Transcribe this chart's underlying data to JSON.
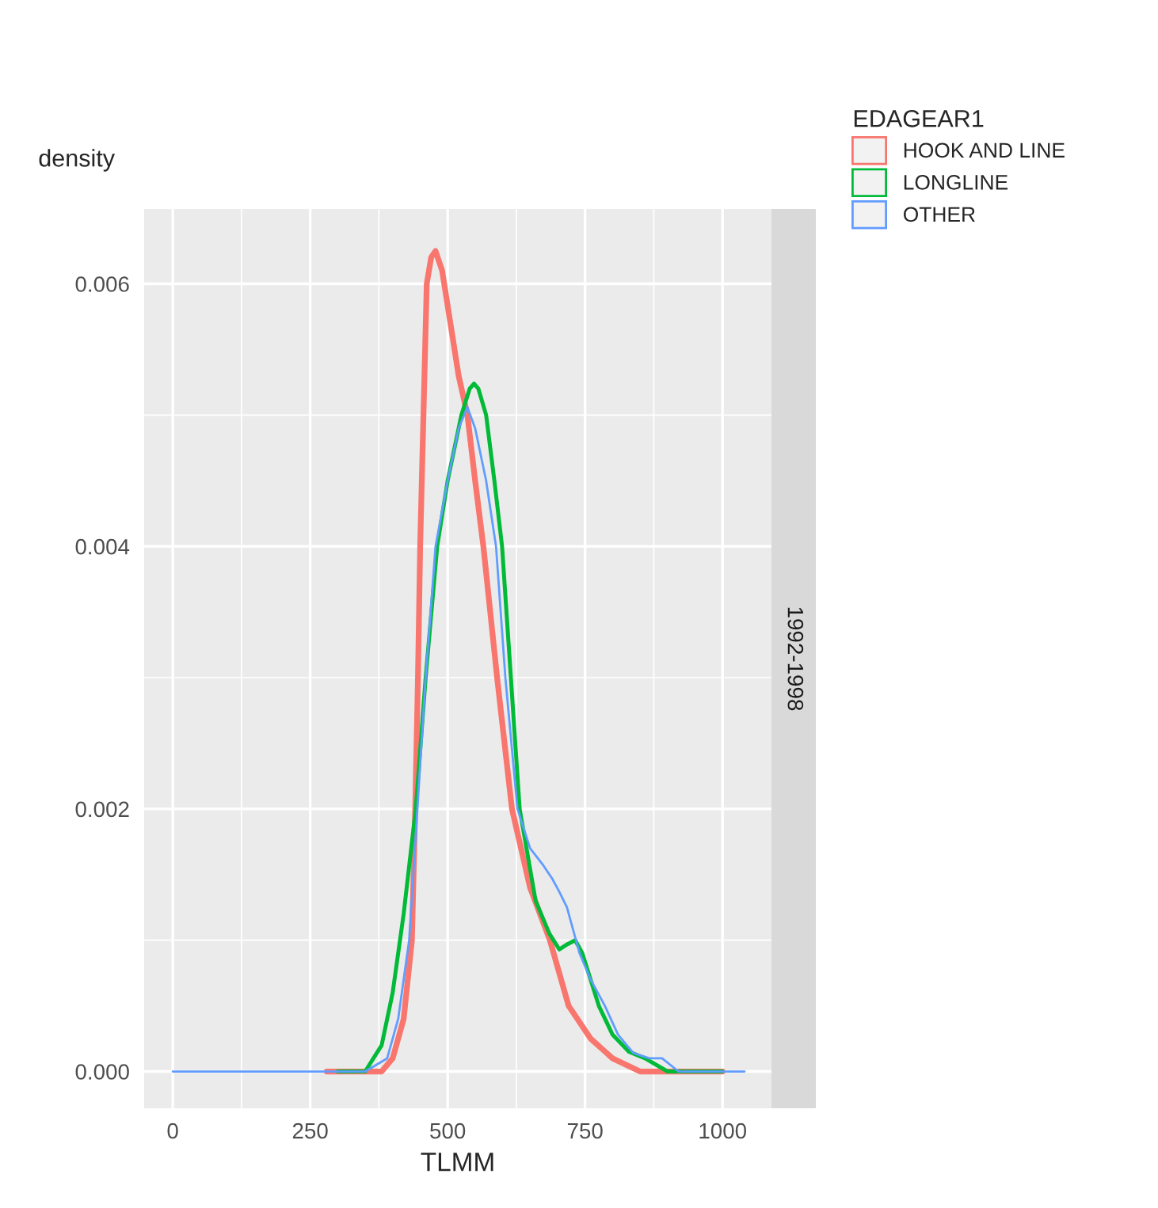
{
  "chart_data": {
    "type": "line",
    "xlabel": "TLMM",
    "ylabel": "density",
    "legend_title": "EDAGEAR1",
    "legend": "top right",
    "grid": true,
    "annotations": [
      "1992-1998"
    ],
    "xlim": [
      -52,
      1089
    ],
    "ylim": [
      -0.00028,
      0.00657
    ],
    "xticks": [
      0,
      250,
      500,
      750,
      1000
    ],
    "yticks": [
      {
        "value": 0,
        "label": "0.000"
      },
      {
        "value": 0.002,
        "label": "0.002"
      },
      {
        "value": 0.004,
        "label": "0.004"
      },
      {
        "value": 0.006,
        "label": "0.006"
      }
    ],
    "series": [
      {
        "name": "HOOK AND LINE",
        "color": "#f8766d",
        "x": [
          280,
          380,
          400,
          420,
          435,
          441,
          446,
          450,
          456,
          462,
          470,
          478,
          490,
          505,
          520,
          536,
          550,
          565,
          590,
          617,
          650,
          686,
          720,
          760,
          800,
          850,
          900,
          950,
          1000
        ],
        "values": [
          0,
          0,
          0.0001,
          0.0004,
          0.001,
          0.002,
          0.003,
          0.004,
          0.005,
          0.006,
          0.0062,
          0.00625,
          0.0061,
          0.0057,
          0.0053,
          0.005,
          0.0045,
          0.004,
          0.003,
          0.002,
          0.0014,
          0.001,
          0.0005,
          0.00025,
          0.0001,
          0,
          0,
          0,
          0
        ]
      },
      {
        "name": "LONGLINE",
        "color": "#00ba38",
        "x": [
          300,
          350,
          380,
          400,
          420,
          442,
          460,
          481,
          500,
          525,
          540,
          548,
          556,
          570,
          585,
          599,
          615,
          631,
          660,
          685,
          703,
          718,
          732,
          745,
          760,
          775,
          800,
          830,
          859,
          900,
          950,
          1000
        ],
        "values": [
          0,
          0,
          0.0002,
          0.0006,
          0.0012,
          0.002,
          0.003,
          0.004,
          0.0045,
          0.005,
          0.0052,
          0.00524,
          0.0052,
          0.005,
          0.0045,
          0.004,
          0.003,
          0.002,
          0.0013,
          0.00105,
          0.00093,
          0.00097,
          0.001,
          0.0009,
          0.0007,
          0.0005,
          0.00028,
          0.00015,
          0.0001,
          0,
          0,
          0
        ]
      },
      {
        "name": "OTHER",
        "color": "#619cff",
        "x": [
          0,
          250,
          350,
          390,
          410,
          430,
          445,
          460,
          478,
          500,
          520,
          536,
          550,
          570,
          588,
          605,
          627,
          650,
          674,
          690,
          703,
          717,
          740,
          760,
          786,
          810,
          838,
          867,
          890,
          920,
          980,
          1040
        ],
        "values": [
          0,
          0,
          0,
          0.0001,
          0.0004,
          0.001,
          0.002,
          0.003,
          0.004,
          0.0045,
          0.0049,
          0.00506,
          0.0049,
          0.0045,
          0.004,
          0.003,
          0.002,
          0.0017,
          0.00157,
          0.00147,
          0.00137,
          0.00125,
          0.0009,
          0.0007,
          0.0005,
          0.00028,
          0.00014,
          0.0001,
          0.0001,
          0,
          0,
          0
        ]
      }
    ]
  }
}
